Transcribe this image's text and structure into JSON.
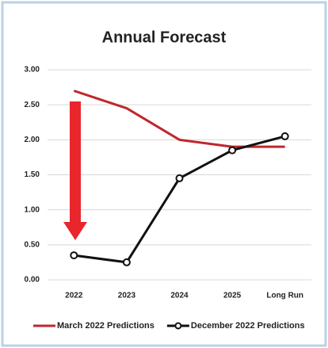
{
  "chart_data": {
    "type": "line",
    "title": "Annual Forecast",
    "categories": [
      "2022",
      "2023",
      "2024",
      "2025",
      "Long Run"
    ],
    "series": [
      {
        "name": "March 2022 Predictions",
        "color": "#c0272d",
        "values": [
          2.7,
          2.45,
          2.0,
          1.9,
          1.9
        ],
        "markers": false
      },
      {
        "name": "December 2022 Predictions",
        "color": "#111111",
        "values": [
          0.35,
          0.25,
          1.45,
          1.85,
          2.05
        ],
        "markers": true
      }
    ],
    "ylim": [
      0,
      3
    ],
    "yticks": [
      {
        "value": 0,
        "label": "0.00"
      },
      {
        "value": 0.5,
        "label": "0.50"
      },
      {
        "value": 1,
        "label": "1.00"
      },
      {
        "value": 1.5,
        "label": "1.50"
      },
      {
        "value": 2,
        "label": "2.00"
      },
      {
        "value": 2.5,
        "label": "2.50"
      },
      {
        "value": 3,
        "label": "3.00"
      }
    ],
    "grid": true,
    "legend": "bottom"
  }
}
